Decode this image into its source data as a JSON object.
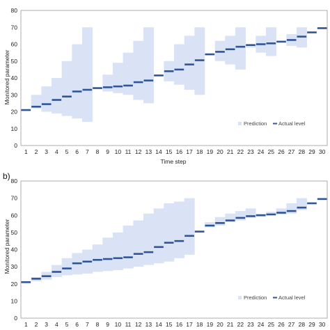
{
  "colors": {
    "band": "#d9e3f5",
    "actual": "#2f5597",
    "frame": "#999999",
    "text": "#222222"
  },
  "chart_data": [
    {
      "type": "step-band",
      "panel_label": "",
      "title": "",
      "xlabel": "Time step",
      "ylabel": "Monitored parameter",
      "ylim": [
        0,
        80
      ],
      "yticks": [
        0,
        10,
        20,
        30,
        40,
        50,
        60,
        70,
        80
      ],
      "x": [
        1,
        2,
        3,
        4,
        5,
        6,
        7,
        8,
        9,
        10,
        11,
        12,
        13,
        14,
        15,
        16,
        17,
        18,
        19,
        20,
        21,
        22,
        23,
        24,
        25,
        26,
        27,
        28,
        29,
        30
      ],
      "grid": false,
      "legend": {
        "position": "bottom-right",
        "band_label": "Prediction",
        "line_label": "Actual level"
      },
      "series": [
        {
          "name": "Actual level",
          "values": [
            21,
            23,
            24.5,
            27,
            29,
            32,
            33,
            34,
            34.5,
            35,
            35.5,
            37.5,
            38.5,
            41.5,
            44,
            45,
            48,
            50.5,
            54,
            55.5,
            57,
            58.5,
            59.5,
            60,
            60.5,
            61.5,
            62.5,
            64.5,
            67,
            69.5
          ]
        },
        {
          "name": "Prediction",
          "lower": [
            21,
            22,
            20,
            19,
            17.5,
            16,
            14,
            34,
            32,
            31,
            30,
            27,
            25,
            41,
            38,
            36,
            33,
            30,
            54,
            50,
            48,
            45,
            58,
            55,
            53,
            61.5,
            59,
            58,
            67,
            69.5
          ],
          "upper": [
            21,
            30,
            35,
            40,
            50,
            60,
            70,
            34,
            42,
            49,
            55,
            62,
            70,
            41,
            50,
            60,
            65,
            70,
            54,
            62,
            65,
            70,
            59.5,
            65,
            70,
            61.5,
            66,
            70,
            67,
            69.5
          ]
        }
      ]
    },
    {
      "type": "step-band",
      "panel_label": "b)",
      "title": "",
      "xlabel": "",
      "ylabel": "Monitored parameter",
      "ylim": [
        0,
        80
      ],
      "yticks": [
        0,
        10,
        20,
        30,
        40,
        50,
        60,
        70,
        80
      ],
      "x": [
        1,
        2,
        3,
        4,
        5,
        6,
        7,
        8,
        9,
        10,
        11,
        12,
        13,
        14,
        15,
        16,
        17,
        18,
        19,
        20,
        21,
        22,
        23,
        24,
        25,
        26,
        27,
        28,
        29,
        30
      ],
      "grid": false,
      "legend": {
        "position": "bottom-right",
        "band_label": "Prediction",
        "line_label": "Actual level"
      },
      "series": [
        {
          "name": "Actual level",
          "values": [
            21,
            23,
            24.5,
            27,
            29,
            32,
            33,
            34,
            34.5,
            35,
            35.5,
            37.5,
            38.5,
            41.5,
            44,
            45,
            48,
            50.5,
            54,
            55.5,
            57,
            58.5,
            59.5,
            60,
            60.5,
            61.5,
            62.5,
            64.5,
            67,
            69.5
          ]
        },
        {
          "name": "Prediction",
          "lower": [
            21,
            21.5,
            22.5,
            24,
            25,
            25.5,
            26,
            27,
            27.5,
            28,
            29,
            30,
            31,
            32,
            33,
            35,
            37,
            50.5,
            53,
            54,
            56,
            57,
            58.5,
            59.5,
            60,
            60.5,
            61,
            63,
            67,
            69.5
          ],
          "upper": [
            21,
            24,
            27,
            31,
            35,
            38,
            40,
            43,
            47,
            50,
            54,
            57,
            61,
            64,
            67,
            68,
            70,
            50.5,
            56,
            59,
            61,
            62.5,
            64,
            61,
            62,
            64,
            67,
            70,
            67,
            69.5
          ]
        }
      ]
    }
  ]
}
